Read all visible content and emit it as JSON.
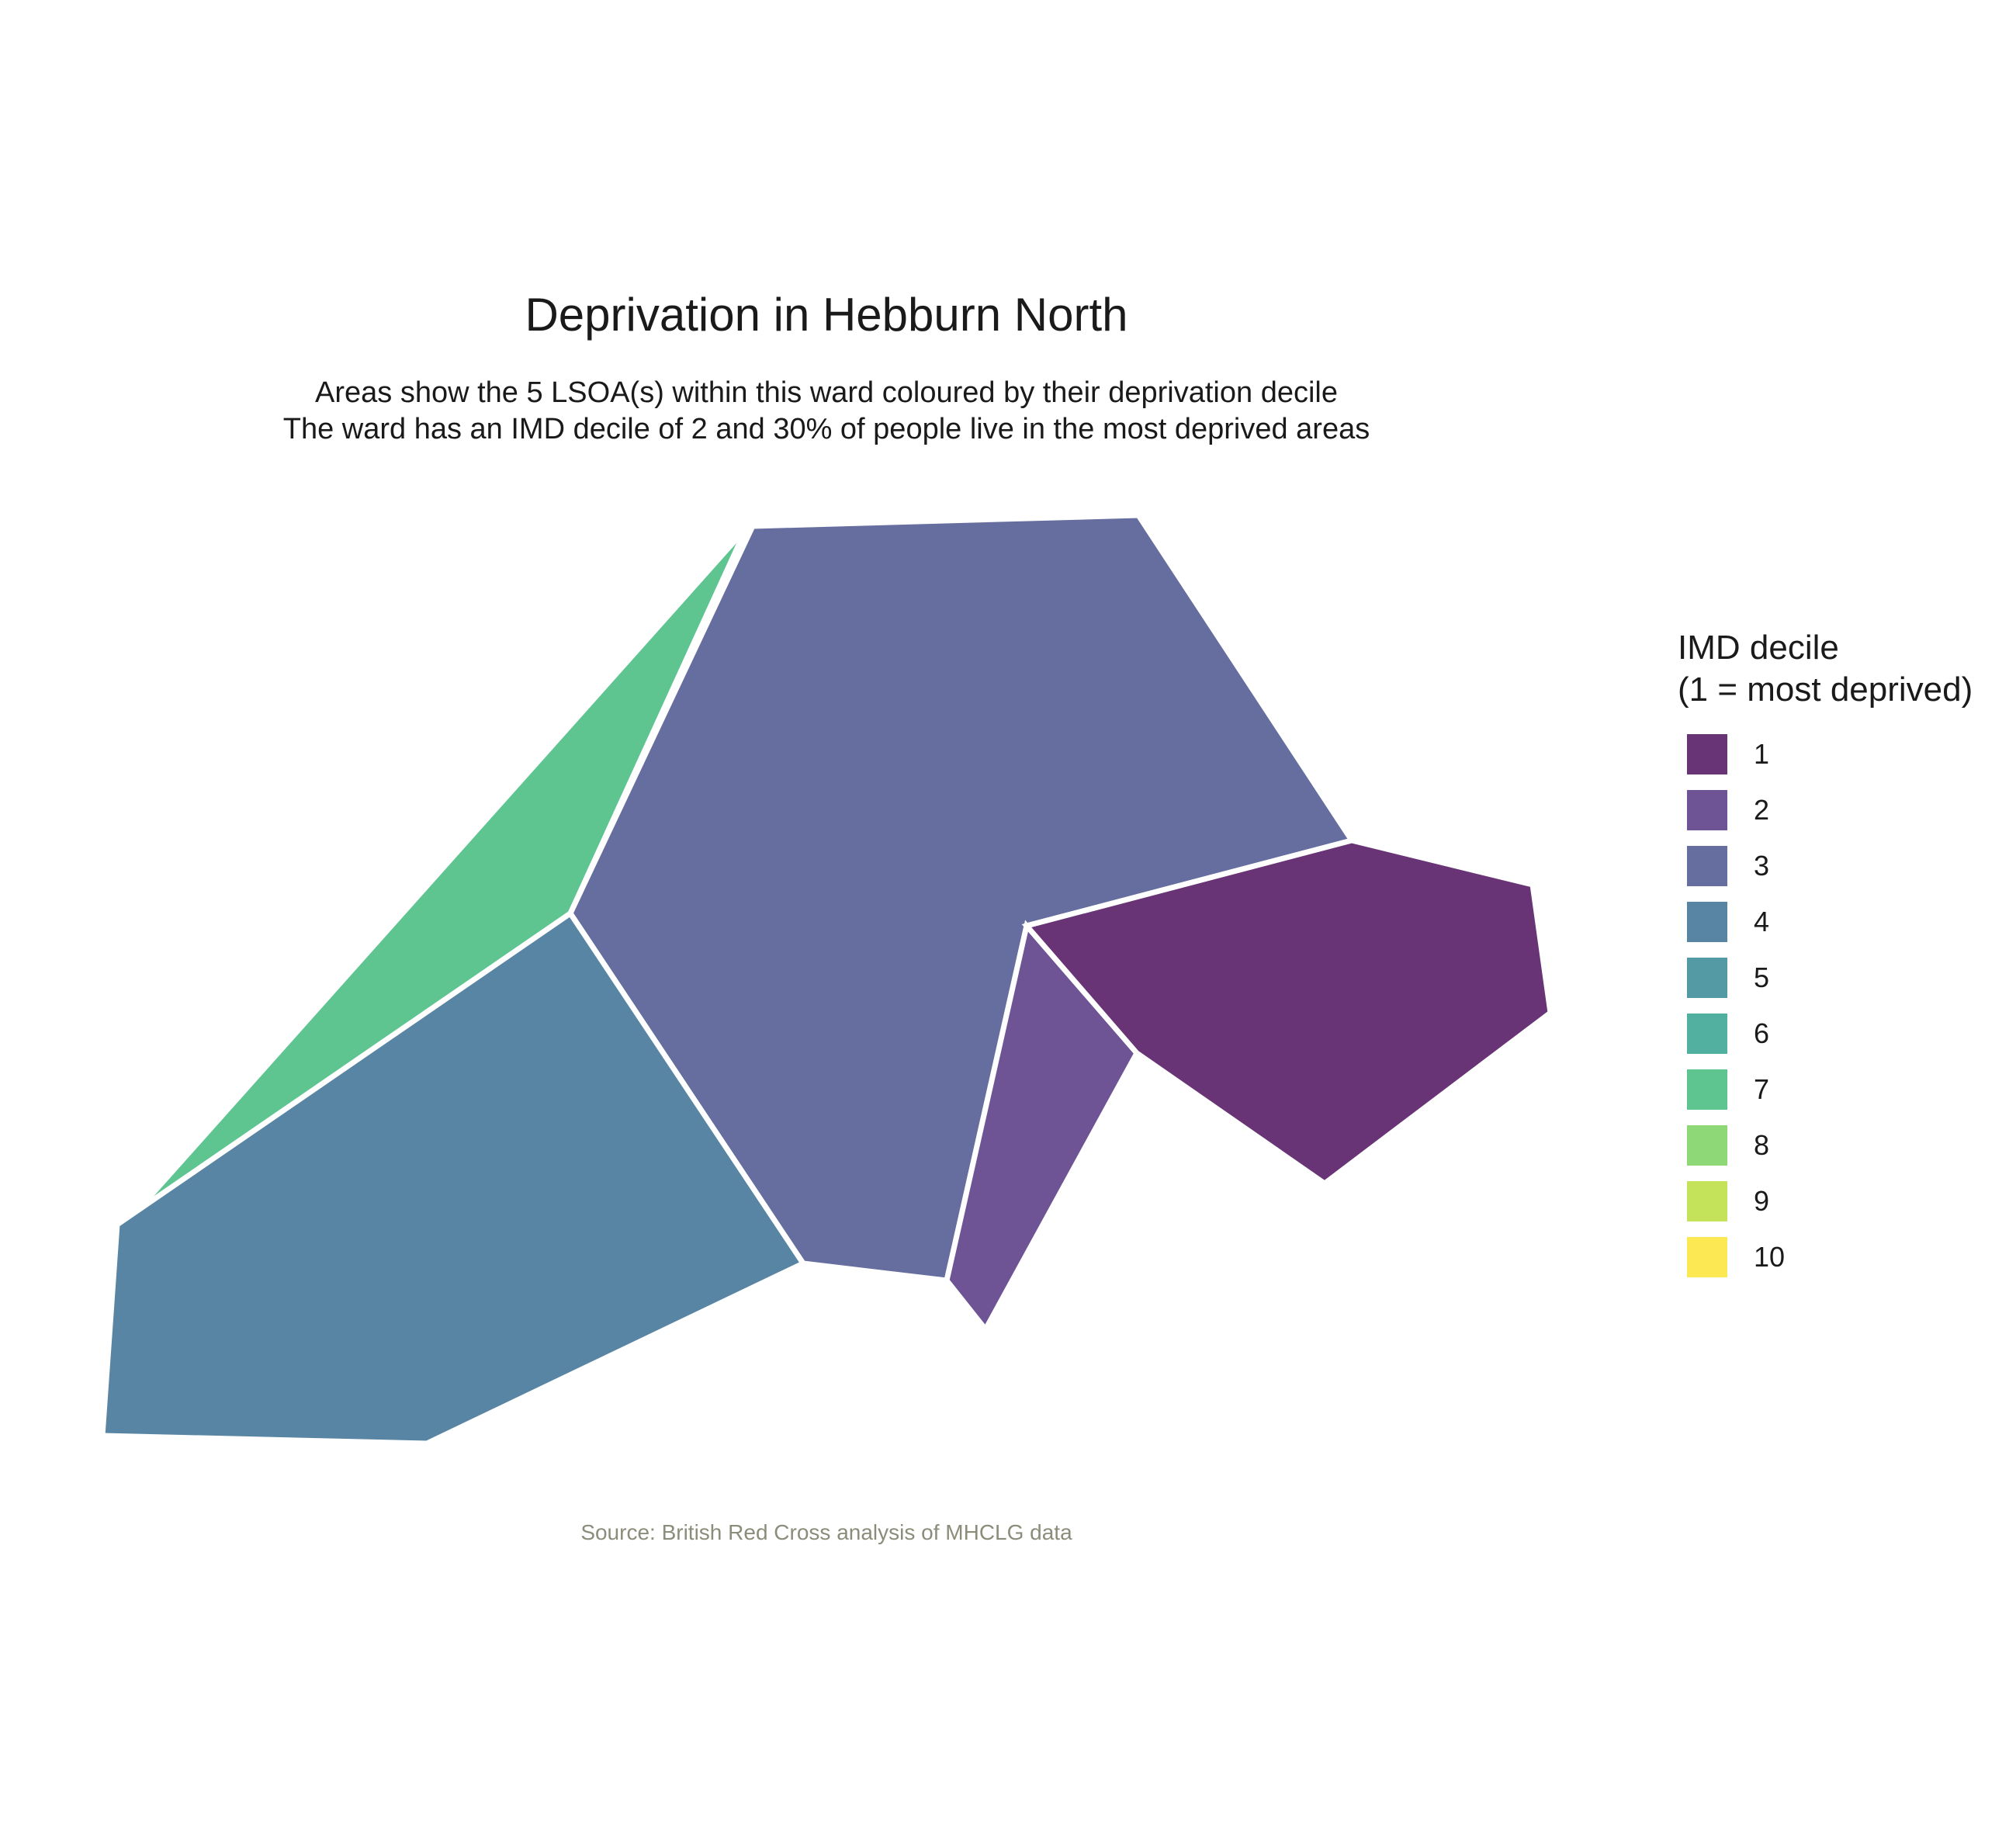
{
  "title": "Deprivation in Hebburn North",
  "subtitle_line1": "Areas show the 5 LSOA(s) within this ward coloured by their deprivation decile",
  "subtitle_line2": "The ward has an IMD decile of 2 and 30% of people live in the most deprived areas",
  "caption": "Source: British Red Cross analysis of MHCLG data",
  "legend": {
    "title_line1": "IMD decile",
    "title_line2": "(1 = most deprived)",
    "items": [
      {
        "label": "1",
        "color": "#683475"
      },
      {
        "label": "2",
        "color": "#6e5495"
      },
      {
        "label": "3",
        "color": "#656e9e"
      },
      {
        "label": "4",
        "color": "#5985a4"
      },
      {
        "label": "5",
        "color": "#549aa4"
      },
      {
        "label": "6",
        "color": "#52b0a0"
      },
      {
        "label": "7",
        "color": "#5ec591"
      },
      {
        "label": "8",
        "color": "#8fd878"
      },
      {
        "label": "9",
        "color": "#c5e35a"
      },
      {
        "label": "10",
        "color": "#fbe853"
      }
    ]
  },
  "areas": [
    {
      "decile": 7
    },
    {
      "decile": 3
    },
    {
      "decile": 4
    },
    {
      "decile": 2
    },
    {
      "decile": 1
    }
  ]
}
